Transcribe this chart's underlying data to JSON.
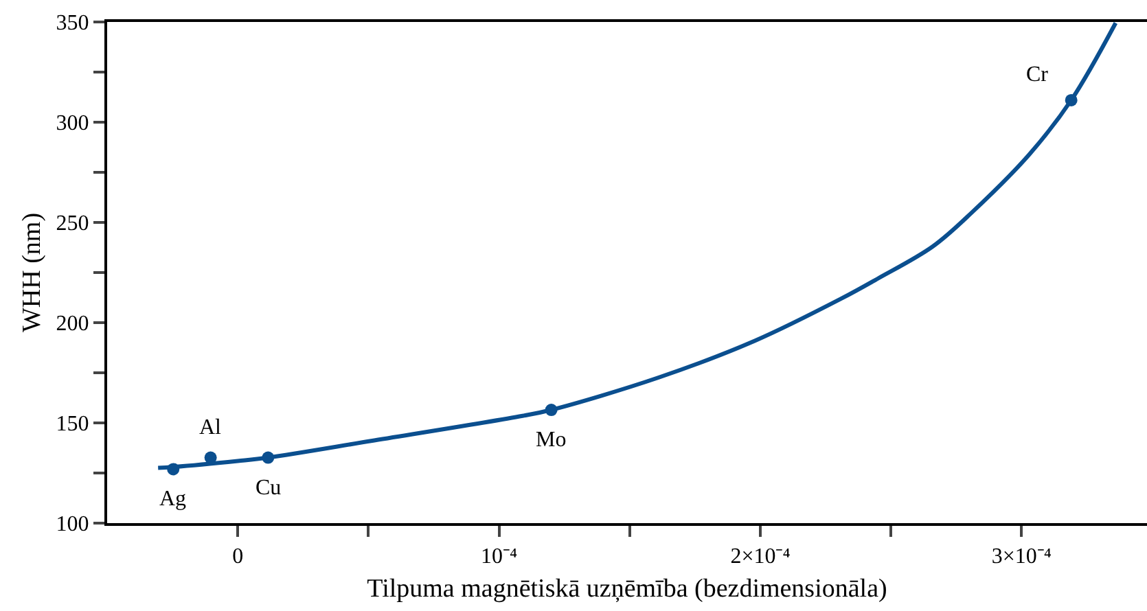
{
  "chart_data": {
    "type": "scatter",
    "xlabel": "Tilpuma magnētiskā uzņēmība (bezdimensionāla)",
    "ylabel": "WHH (nm)",
    "series": [
      {
        "type": "line",
        "color": "#0b4f8f",
        "marker": "none",
        "x": [
          -3.05e-05,
          -2.5e-05,
          0,
          1.16e-05,
          5.1e-05,
          0.000109,
          0.00012,
          0.000161,
          0.000198,
          0.000231,
          0.000245,
          0.000266,
          0.000281,
          0.000303,
          0.000319,
          0.000336
        ],
        "values": [
          127.6,
          128,
          131,
          132.7,
          141,
          153.5,
          156.5,
          172.6,
          191,
          212,
          222,
          238,
          255,
          284,
          311,
          349.5
        ]
      },
      {
        "color": "#0b4f8f",
        "marker": "circle",
        "x": [
          -2.47e-05,
          -1.04e-05,
          1.16e-05,
          0.00012,
          0.000319
        ],
        "values": [
          126.9,
          132.7,
          132.7,
          156.5,
          311
        ]
      }
    ],
    "annotations": [
      {
        "text": "Ag",
        "x": -2.47e-05,
        "y": 126.9
      },
      {
        "text": "Al",
        "x": -1.04e-05,
        "y": 132.7
      },
      {
        "text": "Cu",
        "x": 1.16e-05,
        "y": 132.7
      },
      {
        "text": "Mo",
        "x": 0.00012,
        "y": 156.5
      },
      {
        "text": "Cr",
        "x": 0.000319,
        "y": 311
      }
    ],
    "xlim": [
      -5e-05,
      0.000348
    ],
    "xticks": [
      {
        "value": 0,
        "label": "0"
      },
      {
        "value": 5e-05,
        "label": null
      },
      {
        "value": 0.0001,
        "label": "10⁻⁴"
      },
      {
        "value": 0.00015,
        "label": null
      },
      {
        "value": 0.0002,
        "label": "2×10⁻⁴"
      },
      {
        "value": 0.00025,
        "label": null
      },
      {
        "value": 0.0003,
        "label": "3×10⁻⁴"
      }
    ],
    "ylim": [
      100,
      350
    ],
    "yticks": [
      100,
      {
        "value": 125,
        "label": null
      },
      150,
      {
        "value": 175,
        "label": null
      },
      200,
      {
        "value": 225,
        "label": null
      },
      250,
      {
        "value": 275,
        "label": null
      },
      300,
      {
        "value": 325,
        "label": null
      },
      350
    ]
  }
}
